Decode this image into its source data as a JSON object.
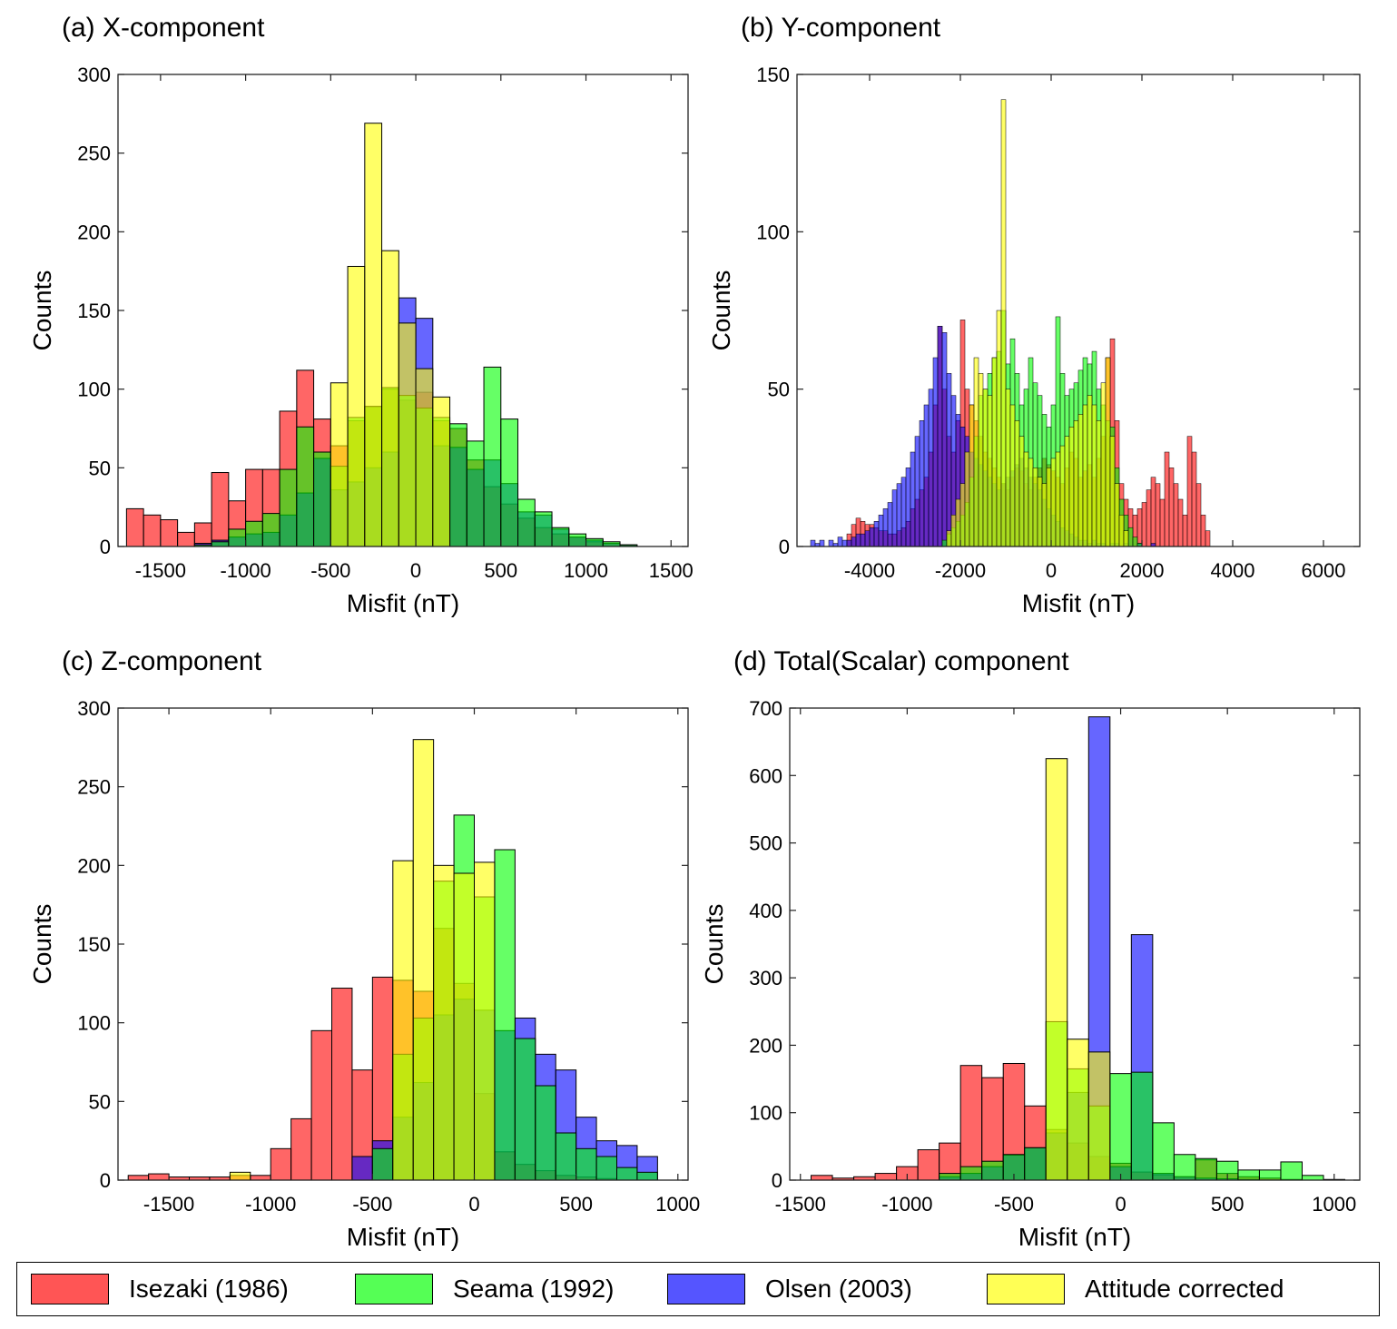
{
  "legend": {
    "items": [
      {
        "label": "Isezaki (1986)",
        "color": "#ff0000"
      },
      {
        "label": "Seama (1992)",
        "color": "#00ff00"
      },
      {
        "label": "Olsen (2003)",
        "color": "#0000ff"
      },
      {
        "label": "Attitude corrected",
        "color": "#ffff00"
      }
    ]
  },
  "chart_data": [
    {
      "type": "bar",
      "title": "(a) X-component",
      "xlabel": "Misfit (nT)",
      "ylabel": "Counts",
      "xlim": [
        -1750,
        1600
      ],
      "ylim": [
        0,
        300
      ],
      "xticks": [
        -1500,
        -1000,
        -500,
        0,
        500,
        1000,
        1500
      ],
      "xtick_labels": [
        "-1500",
        "-1000",
        "-500",
        "0",
        "500",
        "1000",
        "1500"
      ],
      "yticks": [
        0,
        50,
        100,
        150,
        200,
        250,
        300
      ],
      "ytick_labels": [
        "0",
        "50",
        "100",
        "150",
        "200",
        "250",
        "300"
      ],
      "series": [
        {
          "name": "Isezaki (1986)",
          "bin_start": -1700,
          "bin_width": 100,
          "values": [
            24,
            20,
            17,
            9,
            15,
            47,
            29,
            49,
            49,
            86,
            112,
            81,
            64,
            80,
            89,
            100,
            93,
            98,
            80,
            75,
            55,
            38,
            27,
            18,
            12,
            8,
            6,
            3,
            2,
            1
          ]
        },
        {
          "name": "Seama (1992)",
          "bin_start": -1700,
          "bin_width": 100,
          "values": [
            0,
            0,
            0,
            0,
            1,
            3,
            11,
            16,
            21,
            49,
            76,
            60,
            51,
            82,
            89,
            101,
            96,
            88,
            82,
            78,
            67,
            114,
            81,
            30,
            22,
            12,
            8,
            5,
            3,
            1
          ]
        },
        {
          "name": "Olsen (2003)",
          "bin_start": -1700,
          "bin_width": 100,
          "values": [
            0,
            0,
            0,
            0,
            2,
            4,
            6,
            8,
            9,
            20,
            34,
            56,
            36,
            41,
            50,
            60,
            158,
            145,
            64,
            63,
            49,
            55,
            40,
            22,
            20,
            11,
            6,
            4,
            2,
            1
          ]
        },
        {
          "name": "Attitude corrected",
          "bin_start": -1700,
          "bin_width": 100,
          "values": [
            0,
            0,
            0,
            0,
            0,
            0,
            0,
            0,
            0,
            0,
            0,
            0,
            104,
            178,
            269,
            188,
            142,
            113,
            95,
            0,
            0,
            0,
            0,
            0,
            0,
            0,
            0,
            0,
            0,
            0
          ]
        }
      ]
    },
    {
      "type": "bar",
      "title": "(b) Y-component",
      "xlabel": "Misfit (nT)",
      "ylabel": "Counts",
      "xlim": [
        -5600,
        6800
      ],
      "ylim": [
        0,
        150
      ],
      "xticks": [
        -4000,
        -2000,
        0,
        2000,
        4000,
        6000
      ],
      "xtick_labels": [
        "-4000",
        "-2000",
        "0",
        "2000",
        "4000",
        "6000"
      ],
      "yticks": [
        0,
        50,
        100,
        150
      ],
      "ytick_labels": [
        "0",
        "50",
        "100",
        "150"
      ],
      "series": [
        {
          "name": "Isezaki (1986)",
          "bin_start": -4500,
          "bin_width": 100,
          "values": [
            4,
            7,
            9,
            8,
            7,
            7,
            6,
            5,
            5,
            4,
            4,
            5,
            6,
            8,
            12,
            15,
            18,
            22,
            30,
            45,
            70,
            50,
            35,
            30,
            40,
            72,
            50,
            45,
            40,
            35,
            30,
            28,
            25,
            22,
            20,
            18,
            22,
            25,
            24,
            20,
            18,
            22,
            25,
            28,
            26,
            24,
            22,
            20,
            25,
            30,
            28,
            22,
            24,
            26,
            22,
            28,
            35,
            60,
            66,
            40,
            20,
            15,
            12,
            10,
            12,
            14,
            18,
            22,
            20,
            15,
            30,
            25,
            20,
            15,
            10,
            35,
            30,
            20,
            10,
            5
          ]
        },
        {
          "name": "Seama (1992)",
          "bin_start": -2400,
          "bin_width": 100,
          "values": [
            2,
            4,
            6,
            8,
            10,
            14,
            22,
            35,
            48,
            50,
            55,
            60,
            62,
            75,
            58,
            66,
            55,
            45,
            50,
            60,
            52,
            48,
            42,
            38,
            45,
            73,
            55,
            48,
            50,
            52,
            56,
            60,
            58,
            62,
            50,
            45,
            40,
            38,
            25,
            15,
            10,
            6,
            3,
            1
          ]
        },
        {
          "name": "Olsen (2003)",
          "bin_start": -5300,
          "bin_width": 100,
          "values": [
            2,
            1,
            2,
            0,
            2,
            1,
            3,
            2,
            2,
            3,
            4,
            4,
            5,
            6,
            8,
            10,
            12,
            14,
            18,
            20,
            22,
            25,
            30,
            35,
            40,
            45,
            50,
            60,
            70,
            68,
            55,
            48,
            42,
            38,
            35,
            30,
            28,
            26,
            24,
            22,
            20,
            18,
            20,
            22,
            24,
            26,
            28,
            25,
            22,
            20,
            18,
            15,
            12,
            10,
            8,
            6,
            5,
            4,
            3,
            2,
            2,
            1,
            2,
            1,
            1,
            0,
            1,
            1,
            0,
            1,
            0,
            0,
            1,
            0,
            0,
            1
          ]
        },
        {
          "name": "Attitude corrected",
          "bin_start": -2300,
          "bin_width": 100,
          "values": [
            5,
            10,
            15,
            20,
            30,
            45,
            60,
            55,
            50,
            48,
            60,
            75,
            142,
            50,
            45,
            40,
            35,
            30,
            28,
            25,
            22,
            20,
            25,
            28,
            30,
            32,
            35,
            38,
            40,
            42,
            45,
            48,
            45,
            40,
            52,
            60,
            35,
            20,
            10,
            5
          ]
        }
      ]
    },
    {
      "type": "bar",
      "title": "(c) Z-component",
      "xlabel": "Misfit (nT)",
      "ylabel": "Counts",
      "xlim": [
        -1750,
        1050
      ],
      "ylim": [
        0,
        300
      ],
      "xticks": [
        -1500,
        -1000,
        -500,
        0,
        500,
        1000
      ],
      "xtick_labels": [
        "-1500",
        "-1000",
        "-500",
        "0",
        "500",
        "1000"
      ],
      "yticks": [
        0,
        50,
        100,
        150,
        200,
        250,
        300
      ],
      "ytick_labels": [
        "0",
        "50",
        "100",
        "150",
        "200",
        "250",
        "300"
      ],
      "series": [
        {
          "name": "Isezaki (1986)",
          "bin_start": -1700,
          "bin_width": 100,
          "values": [
            3,
            4,
            2,
            2,
            2,
            3,
            3,
            20,
            39,
            95,
            122,
            70,
            129,
            127,
            120,
            160,
            125,
            55,
            18,
            10,
            6,
            3,
            2,
            1,
            0,
            0
          ]
        },
        {
          "name": "Seama (1992)",
          "bin_start": -1700,
          "bin_width": 100,
          "values": [
            0,
            0,
            0,
            0,
            0,
            0,
            0,
            0,
            0,
            0,
            0,
            0,
            20,
            80,
            103,
            190,
            232,
            180,
            210,
            90,
            60,
            30,
            20,
            15,
            8,
            5
          ]
        },
        {
          "name": "Olsen (2003)",
          "bin_start": -1700,
          "bin_width": 100,
          "values": [
            0,
            0,
            0,
            0,
            0,
            0,
            0,
            0,
            0,
            0,
            0,
            15,
            25,
            40,
            62,
            105,
            115,
            108,
            95,
            103,
            80,
            70,
            40,
            25,
            22,
            15
          ]
        },
        {
          "name": "Attitude corrected",
          "bin_start": -1700,
          "bin_width": 100,
          "values": [
            0,
            0,
            0,
            0,
            0,
            5,
            0,
            0,
            0,
            0,
            0,
            0,
            0,
            203,
            280,
            200,
            195,
            202,
            0,
            0,
            0,
            0,
            0,
            0,
            0,
            0
          ]
        }
      ]
    },
    {
      "type": "bar",
      "title": "(d) Total(Scalar) component",
      "xlabel": "Misfit (nT)",
      "ylabel": "Counts",
      "xlim": [
        -1550,
        1120
      ],
      "ylim": [
        0,
        700
      ],
      "xticks": [
        -1500,
        -1000,
        -500,
        0,
        500,
        1000
      ],
      "xtick_labels": [
        "-1500",
        "-1000",
        "-500",
        "0",
        "500",
        "1000"
      ],
      "yticks": [
        0,
        100,
        200,
        300,
        400,
        500,
        600,
        700
      ],
      "ytick_labels": [
        "0",
        "100",
        "200",
        "300",
        "400",
        "500",
        "600",
        "700"
      ],
      "series": [
        {
          "name": "Isezaki (1986)",
          "bin_start": -1450,
          "bin_width": 100,
          "values": [
            7,
            3,
            5,
            10,
            20,
            45,
            55,
            170,
            152,
            173,
            110,
            75,
            55,
            35,
            25,
            12,
            8,
            5,
            30,
            10,
            5,
            3,
            1,
            0,
            0
          ]
        },
        {
          "name": "Seama (1992)",
          "bin_start": -1450,
          "bin_width": 100,
          "values": [
            0,
            0,
            0,
            0,
            0,
            0,
            10,
            20,
            28,
            38,
            48,
            235,
            165,
            110,
            158,
            160,
            85,
            38,
            32,
            28,
            15,
            15,
            27,
            7,
            1
          ]
        },
        {
          "name": "Olsen (2003)",
          "bin_start": -1450,
          "bin_width": 100,
          "values": [
            0,
            0,
            0,
            0,
            0,
            0,
            5,
            10,
            20,
            37,
            48,
            70,
            130,
            687,
            20,
            364,
            10,
            5,
            3,
            2,
            1,
            0,
            0,
            0,
            0
          ]
        },
        {
          "name": "Attitude corrected",
          "bin_start": -1450,
          "bin_width": 100,
          "values": [
            0,
            0,
            0,
            0,
            0,
            0,
            0,
            0,
            0,
            0,
            0,
            625,
            209,
            190,
            0,
            0,
            0,
            0,
            0,
            0,
            0,
            0,
            0,
            0,
            0
          ]
        }
      ]
    }
  ]
}
